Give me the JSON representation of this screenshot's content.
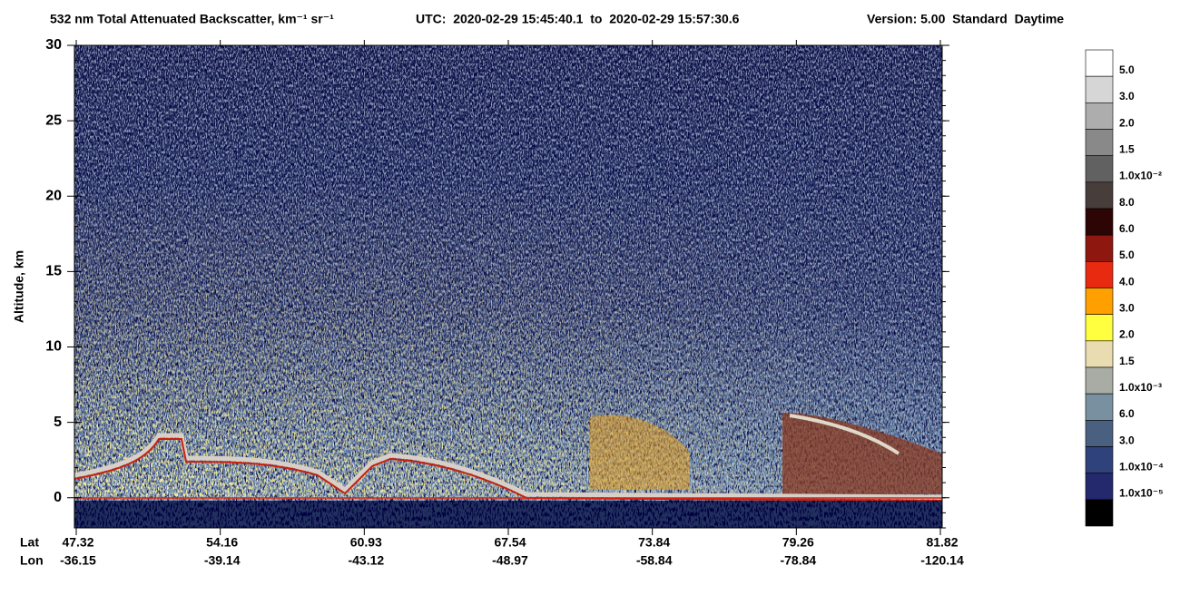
{
  "chart_data": {
    "type": "curtain",
    "title": "532 nm Total Attenuated Backscatter, km⁻¹ sr⁻¹",
    "utc": "UTC:  2020-02-29 15:45:40.1  to  2020-02-29 15:57:30.6",
    "version": "Version: 5.00  Standard  Daytime",
    "y_label": "Altitude, km",
    "ylim": [
      -2,
      30
    ],
    "yticks": [
      0,
      5,
      10,
      15,
      20,
      25,
      30
    ],
    "lat_label": "Lat",
    "lon_label": "Lon",
    "lat": [
      47.32,
      54.16,
      60.93,
      67.54,
      73.84,
      79.26,
      81.82
    ],
    "lon": [
      -36.15,
      -39.14,
      -43.12,
      -48.97,
      -58.84,
      -78.84,
      -120.14
    ],
    "colorbar": {
      "colors": [
        "#ffffff",
        "#d6d6d6",
        "#adadad",
        "#898989",
        "#616161",
        "#473d3b",
        "#2e0505",
        "#8e1810",
        "#e82a10",
        "#ffa000",
        "#ffff40",
        "#e8dcb0",
        "#a8aca4",
        "#7890a0",
        "#4a6080",
        "#30427c",
        "#24286c",
        "#000000"
      ],
      "labels": [
        "5.0",
        "3.0",
        "2.0",
        "1.5",
        "1.0x10⁻²",
        "8.0",
        "6.0",
        "5.0",
        "4.0",
        "3.0",
        "2.0",
        "1.5",
        "1.0x10⁻³",
        "6.0",
        "3.0",
        "1.0x10⁻⁴",
        "1.0x10⁻⁵"
      ]
    }
  }
}
